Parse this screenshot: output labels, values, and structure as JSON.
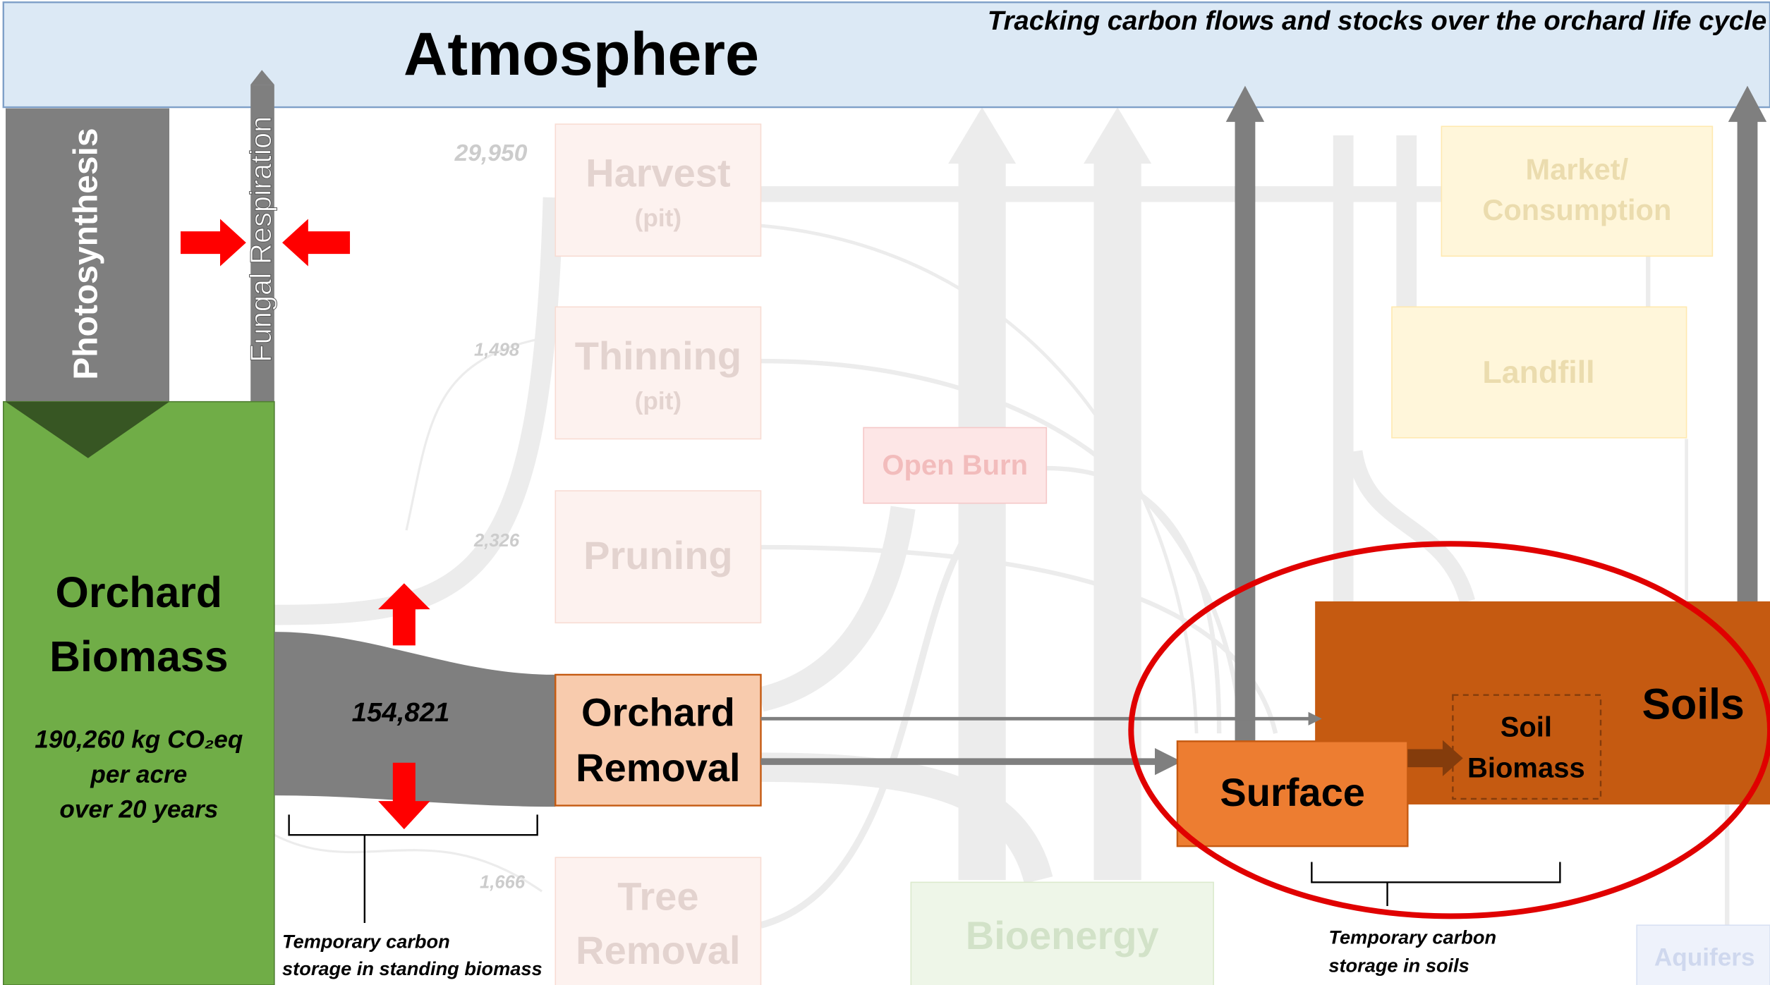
{
  "header": {
    "title": "Atmosphere",
    "subtitle": "Tracking carbon flows and stocks over the orchard life cycle"
  },
  "flows": {
    "photosynthesis": "Photosynthesis",
    "fungal_respiration": "Fungal Respiration",
    "orchard_removal_flow": "154,821"
  },
  "orchard_biomass": {
    "label": [
      "Orchard",
      "Biomass"
    ],
    "description": [
      "190,260 kg CO₂eq",
      "per acre",
      "over 20 years"
    ]
  },
  "nodes": [
    {
      "label": [
        "Harvest",
        "(pit)"
      ],
      "value": "29,950"
    },
    {
      "label": [
        "Thinning",
        "(pit)"
      ],
      "value": "1,498"
    },
    {
      "label": [
        "Pruning"
      ],
      "value": "2,326"
    },
    {
      "label": [
        "Tree",
        "Removal"
      ],
      "value": "1,666"
    },
    {
      "label": [
        "Orchard",
        "Removal"
      ]
    },
    {
      "label": [
        "Open Burn"
      ]
    },
    {
      "label": [
        "Market/",
        "Consumption"
      ]
    },
    {
      "label": [
        "Landfill"
      ]
    },
    {
      "label": [
        "Bioenergy"
      ]
    },
    {
      "label": [
        "Soils"
      ]
    },
    {
      "label": [
        "Soil",
        "Biomass"
      ]
    },
    {
      "label": [
        "Surface"
      ]
    },
    {
      "label": [
        "Aquifers"
      ]
    }
  ],
  "annotations": [
    [
      "Temporary carbon",
      "storage in standing biomass"
    ],
    [
      "Temporary carbon",
      "storage in soils"
    ]
  ]
}
